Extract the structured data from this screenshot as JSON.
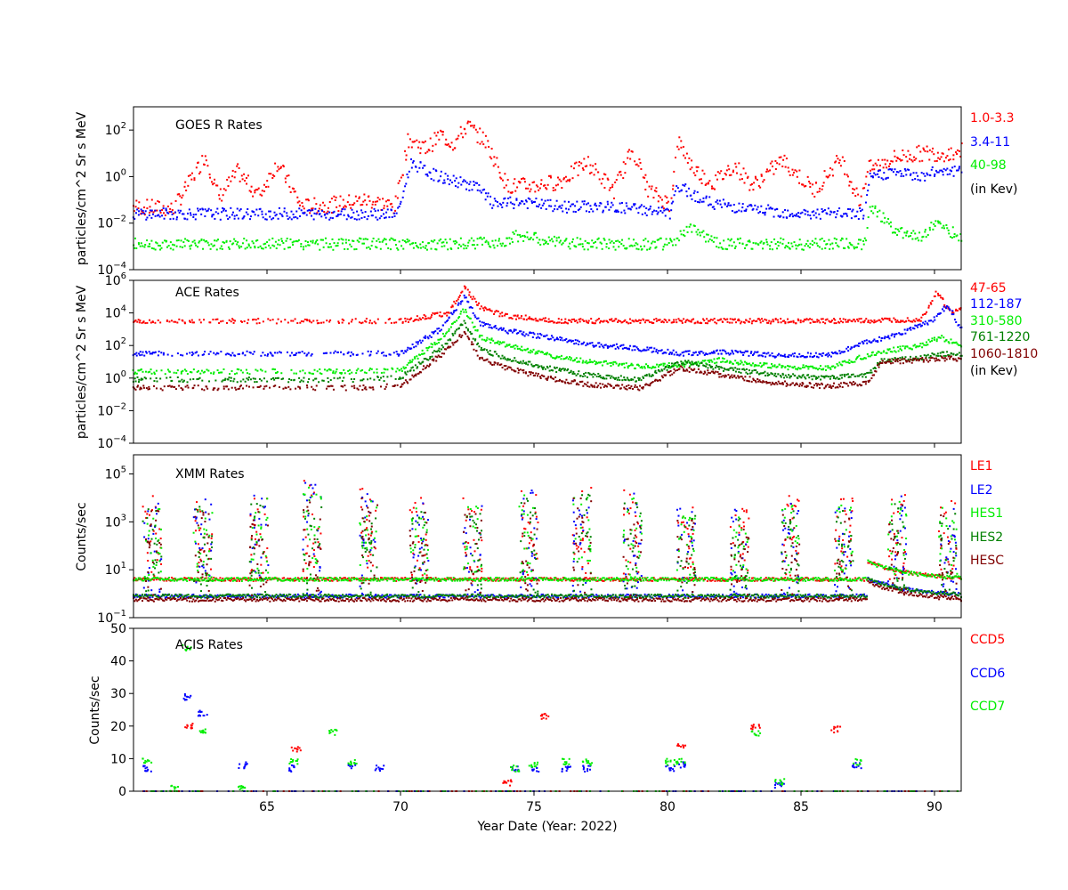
{
  "chart_data": [
    {
      "type": "scatter",
      "title": "GOES R Rates",
      "ylabel": "particles/cm^2 Sr s MeV",
      "yscale": "log",
      "ylim_exp": [
        -4,
        3
      ],
      "yticks_exp": [
        -4,
        -2,
        0,
        2
      ],
      "legend_labels": [
        "1.0-3.3",
        "3.4-11",
        "40-98",
        "(in Kev)"
      ],
      "legend_colors": [
        "#ff0000",
        "#0000ff",
        "#00ee00",
        "#000000"
      ],
      "series": [
        {
          "name": "1.0-3.3",
          "color": "#ff0000",
          "x": [
            60.2,
            61.5,
            62.7,
            63.2,
            63.9,
            64.7,
            65.4,
            66.3,
            67.5,
            68.8,
            69.8,
            70.3,
            71.0,
            71.5,
            72.0,
            72.5,
            73.2,
            74.0,
            75.0,
            76.0,
            77.0,
            78.0,
            78.7,
            79.3,
            80.1,
            80.4,
            81.0,
            81.7,
            82.5,
            83.2,
            84.3,
            85.5,
            86.5,
            87.2,
            87.5,
            88.5,
            89.5,
            90.5,
            91.0
          ],
          "y": [
            -1.3,
            -1.4,
            0.9,
            -0.9,
            0.2,
            -0.8,
            0.6,
            -1.3,
            -1.2,
            -1.0,
            -1.3,
            1.6,
            1.2,
            1.8,
            1.4,
            2.2,
            1.5,
            -0.4,
            -0.4,
            -0.2,
            0.6,
            -0.6,
            1.2,
            -0.6,
            -1.2,
            1.5,
            0.3,
            -0.3,
            0.5,
            -0.4,
            0.7,
            -0.6,
            0.8,
            -1.1,
            0.3,
            0.8,
            1.0,
            1.0,
            1.1
          ]
        },
        {
          "name": "3.4-11",
          "color": "#0000ff",
          "x": [
            60.2,
            62.0,
            64.0,
            66.0,
            68.0,
            69.9,
            70.4,
            71.2,
            72.0,
            72.8,
            73.5,
            74.5,
            76.0,
            77.5,
            79.0,
            80.1,
            80.4,
            81.5,
            83.0,
            85.0,
            87.4,
            87.6,
            88.5,
            89.5,
            90.3,
            91.0
          ],
          "y": [
            -1.6,
            -1.6,
            -1.6,
            -1.6,
            -1.6,
            -1.6,
            0.6,
            0.1,
            -0.2,
            -0.4,
            -1.2,
            -1.1,
            -1.3,
            -1.3,
            -1.4,
            -1.6,
            -0.4,
            -1.1,
            -1.4,
            -1.6,
            -1.6,
            0.0,
            0.2,
            0.0,
            0.3,
            0.2
          ]
        },
        {
          "name": "40-98",
          "color": "#00ee00",
          "x": [
            60.2,
            62.0,
            64.0,
            66.0,
            68.0,
            70.0,
            72.0,
            73.8,
            74.5,
            75.5,
            77.0,
            79.0,
            80.2,
            80.8,
            82.0,
            84.0,
            86.0,
            87.4,
            87.6,
            88.5,
            89.5,
            90.0,
            91.0
          ],
          "y": [
            -2.9,
            -2.9,
            -2.9,
            -2.9,
            -2.9,
            -2.9,
            -2.9,
            -2.8,
            -2.5,
            -2.8,
            -2.9,
            -2.9,
            -2.9,
            -2.2,
            -2.9,
            -2.9,
            -2.9,
            -2.9,
            -1.2,
            -2.3,
            -2.6,
            -2.0,
            -2.6
          ]
        }
      ]
    },
    {
      "type": "scatter",
      "title": "ACE Rates",
      "ylabel": "particles/cm^2 Sr s MeV",
      "yscale": "log",
      "ylim_exp": [
        -4,
        6
      ],
      "yticks_exp": [
        -4,
        -2,
        0,
        2,
        4,
        6
      ],
      "legend_labels": [
        "47-65",
        "112-187",
        "310-580",
        "761-1220",
        "1060-1810",
        "(in Kev)"
      ],
      "legend_colors": [
        "#ff0000",
        "#0000ff",
        "#00ee00",
        "#008000",
        "#800000",
        "#000000"
      ],
      "series": [
        {
          "name": "47-65",
          "color": "#ff0000",
          "x": [
            60.0,
            62.0,
            64.0,
            66.0,
            68.0,
            70.0,
            71.8,
            72.4,
            73.0,
            74.0,
            76.0,
            78.0,
            80.0,
            82.0,
            84.0,
            86.0,
            87.5,
            89.5,
            90.1,
            90.6,
            91.0
          ],
          "y": [
            3.5,
            3.5,
            3.5,
            3.5,
            3.5,
            3.5,
            4.0,
            5.6,
            4.3,
            3.8,
            3.5,
            3.5,
            3.5,
            3.5,
            3.5,
            3.5,
            3.5,
            3.6,
            5.3,
            4.0,
            4.2
          ]
        },
        {
          "name": "112-187",
          "color": "#0000ff",
          "x": [
            60.0,
            62.0,
            64.0,
            66.0,
            68.0,
            70.0,
            71.5,
            72.4,
            73.0,
            74.0,
            75.5,
            77.0,
            79.0,
            80.5,
            82.0,
            84.0,
            86.0,
            87.5,
            88.5,
            90.0,
            90.5,
            91.0
          ],
          "y": [
            1.5,
            1.5,
            1.5,
            1.5,
            1.5,
            1.5,
            3.0,
            5.0,
            3.3,
            2.9,
            2.5,
            2.1,
            1.8,
            1.5,
            1.6,
            1.4,
            1.4,
            2.2,
            2.6,
            3.6,
            4.5,
            3.0
          ]
        },
        {
          "name": "310-580",
          "color": "#00ee00",
          "x": [
            60.0,
            62.0,
            64.0,
            66.0,
            68.0,
            70.0,
            71.5,
            72.4,
            73.0,
            74.0,
            75.5,
            77.0,
            79.0,
            80.5,
            82.0,
            84.0,
            86.0,
            87.5,
            88.0,
            89.5,
            90.2,
            91.0
          ],
          "y": [
            0.4,
            0.4,
            0.4,
            0.4,
            0.4,
            0.5,
            2.4,
            4.2,
            2.5,
            2.0,
            1.4,
            1.0,
            0.7,
            0.8,
            1.1,
            0.7,
            0.6,
            1.4,
            1.6,
            2.0,
            2.5,
            2.0
          ]
        },
        {
          "name": "761-1220",
          "color": "#008000",
          "x": [
            60.0,
            62.0,
            64.0,
            66.0,
            68.0,
            70.0,
            71.5,
            72.4,
            73.0,
            74.0,
            75.5,
            77.0,
            79.0,
            80.5,
            82.0,
            84.0,
            86.0,
            87.5,
            88.0,
            89.5,
            90.2,
            91.0
          ],
          "y": [
            -0.1,
            -0.1,
            -0.1,
            -0.1,
            -0.1,
            0.0,
            1.8,
            3.4,
            1.8,
            1.2,
            0.6,
            0.2,
            -0.1,
            1.0,
            0.6,
            0.2,
            0.0,
            0.2,
            1.1,
            1.2,
            1.5,
            1.4
          ]
        },
        {
          "name": "1060-1810",
          "color": "#800000",
          "x": [
            60.0,
            62.0,
            64.0,
            66.0,
            68.0,
            70.0,
            71.5,
            72.4,
            73.0,
            74.0,
            75.5,
            77.0,
            79.0,
            80.5,
            82.0,
            84.0,
            86.0,
            87.5,
            88.0,
            89.5,
            90.2,
            91.0
          ],
          "y": [
            -0.6,
            -0.6,
            -0.6,
            -0.6,
            -0.6,
            -0.5,
            1.4,
            2.8,
            1.2,
            0.6,
            0.0,
            -0.4,
            -0.6,
            0.6,
            0.2,
            -0.3,
            -0.5,
            -0.3,
            1.0,
            1.1,
            1.2,
            1.2
          ]
        }
      ]
    },
    {
      "type": "scatter",
      "title": "XMM Rates",
      "ylabel": "Counts/sec",
      "yscale": "log",
      "ylim_exp": [
        -1,
        5.8
      ],
      "yticks_exp": [
        -1,
        1,
        3,
        5
      ],
      "legend_labels": [
        "LE1",
        "LE2",
        "HES1",
        "HES2",
        "HESC"
      ],
      "legend_colors": [
        "#ff0000",
        "#0000ff",
        "#00ee00",
        "#008000",
        "#800000"
      ],
      "peaks_x": [
        60.7,
        62.6,
        64.7,
        66.7,
        68.8,
        70.7,
        72.7,
        74.8,
        76.8,
        78.7,
        80.7,
        82.7,
        84.6,
        86.6,
        88.6,
        90.5
      ],
      "peaks_exp": [
        4.1,
        4.1,
        4.4,
        4.8,
        4.6,
        4.0,
        4.1,
        4.5,
        4.6,
        4.4,
        3.7,
        3.7,
        4.1,
        4.0,
        4.3,
        3.9
      ],
      "series": [
        {
          "name": "LE1",
          "color": "#ff0000",
          "baseline_exp": 0.6
        },
        {
          "name": "LE2",
          "color": "#0000ff",
          "baseline_exp": -0.1
        },
        {
          "name": "HES1",
          "color": "#00ee00",
          "baseline_exp": 0.6
        },
        {
          "name": "HES2",
          "color": "#008000",
          "baseline_exp": -0.1
        },
        {
          "name": "HESC",
          "color": "#800000",
          "baseline_exp": -0.25
        }
      ]
    },
    {
      "type": "scatter",
      "title": "ACIS Rates",
      "ylabel": "Counts/sec",
      "yscale": "linear",
      "ylim": [
        0,
        50
      ],
      "yticks": [
        0,
        10,
        20,
        30,
        40,
        50
      ],
      "legend_labels": [
        "CCD5",
        "CCD6",
        "CCD7"
      ],
      "legend_colors": [
        "#ff0000",
        "#0000ff",
        "#00ee00"
      ],
      "series": [
        {
          "name": "CCD5",
          "color": "#ff0000",
          "x": [
            62.1,
            66.1,
            74.0,
            75.4,
            80.5,
            83.3,
            86.3
          ],
          "y": [
            20,
            13,
            2.5,
            23,
            14,
            20,
            19
          ]
        },
        {
          "name": "CCD6",
          "color": "#0000ff",
          "x": [
            60.5,
            62.0,
            62.6,
            64.1,
            66.0,
            68.2,
            69.2,
            74.3,
            75.0,
            76.2,
            77.0,
            80.1,
            80.5,
            84.2,
            87.1
          ],
          "y": [
            7,
            29,
            24,
            8,
            7,
            8,
            7,
            7,
            7,
            7,
            7,
            7,
            8,
            2,
            8
          ]
        },
        {
          "name": "CCD7",
          "color": "#00ee00",
          "x": [
            60.5,
            61.5,
            62.0,
            62.6,
            64.1,
            66.0,
            67.5,
            68.2,
            74.3,
            75.0,
            76.2,
            77.0,
            80.1,
            80.5,
            83.3,
            84.2,
            87.1
          ],
          "y": [
            9,
            1,
            44,
            18,
            1,
            9,
            18,
            9,
            7,
            8,
            9,
            9,
            9,
            9,
            18,
            3,
            9
          ]
        }
      ]
    }
  ],
  "x_axis": {
    "label": "Year Date (Year: 2022)",
    "xlim": [
      60,
      91
    ],
    "ticks": [
      65,
      70,
      75,
      80,
      85,
      90
    ]
  }
}
